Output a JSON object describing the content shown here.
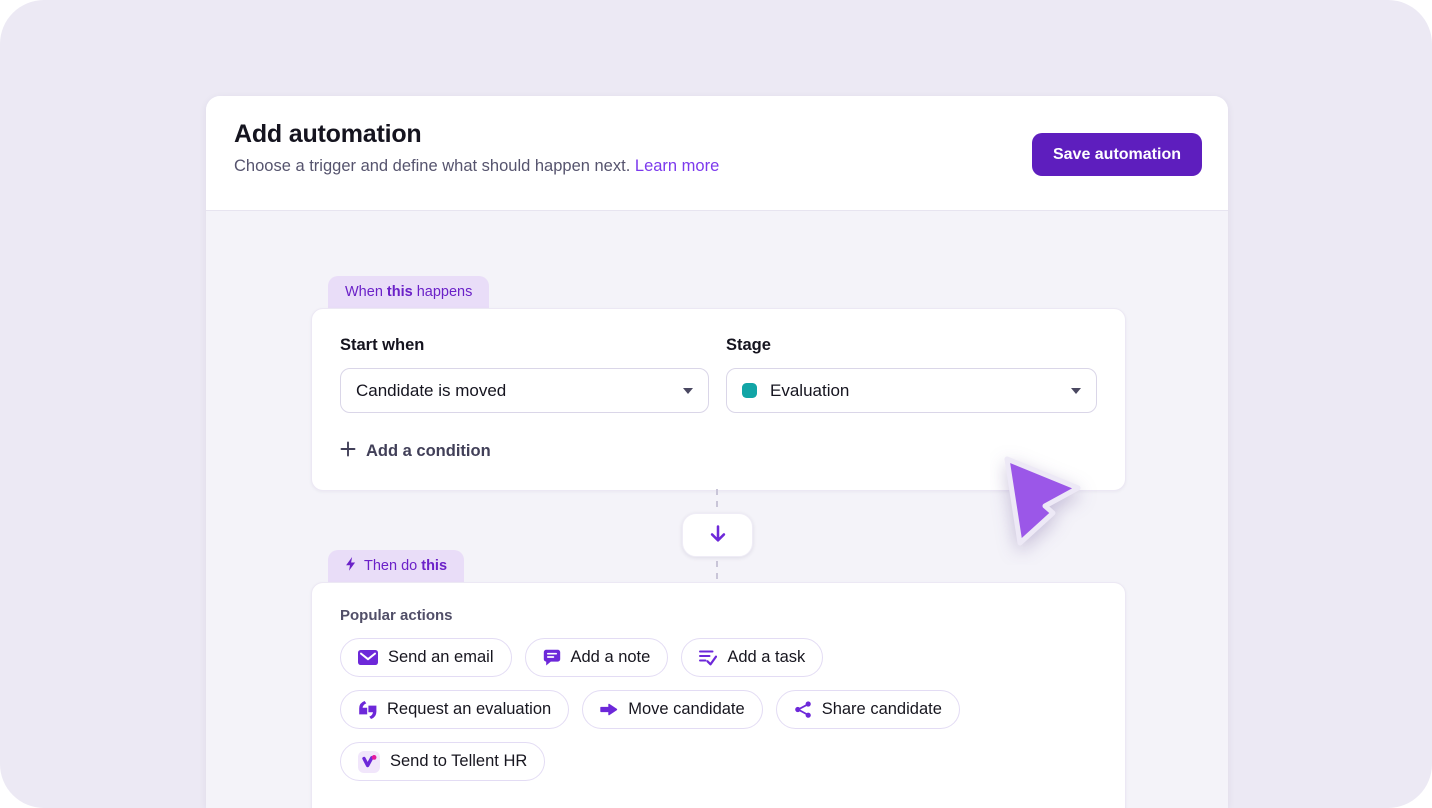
{
  "header": {
    "title": "Add automation",
    "subtitle": "Choose a trigger and define what should happen next.",
    "learn_more_label": "Learn more",
    "save_label": "Save automation"
  },
  "trigger": {
    "badge_pre": "When ",
    "badge_bold": "this",
    "badge_post": " happens",
    "start_when_label": "Start when",
    "start_when_value": "Candidate is moved",
    "stage_label": "Stage",
    "stage_value": "Evaluation",
    "stage_swatch_color": "#12A5A6",
    "add_condition_label": "Add a condition"
  },
  "connector": {
    "icon": "arrow-down-icon"
  },
  "action": {
    "badge_icon": "lightning-icon",
    "badge_pre": "Then do ",
    "badge_bold": "this",
    "badge_post": "",
    "popular_actions_label": "Popular actions",
    "rows": [
      [
        {
          "label": "Send an email",
          "icon": "email-icon"
        },
        {
          "label": "Add a note",
          "icon": "note-icon"
        },
        {
          "label": "Add a task",
          "icon": "task-icon"
        }
      ],
      [
        {
          "label": "Request an evaluation",
          "icon": "quote-icon"
        },
        {
          "label": "Move candidate",
          "icon": "arrow-right-icon"
        },
        {
          "label": "Share candidate",
          "icon": "share-icon"
        }
      ],
      [
        {
          "label": "Send to Tellent HR",
          "icon": "tellent-logo-icon"
        }
      ]
    ]
  },
  "colors": {
    "accent_purple": "#6D28D9",
    "deep_purple": "#5E1EBE",
    "badge_bg": "#E9DDF8",
    "badge_text": "#6B21C8",
    "teal": "#12A5A6",
    "page_bg": "#ECE9F4",
    "body_bg": "#F4F3F9",
    "cursor_fill": "#9B57E8",
    "link_purple": "#7C3AED",
    "magenta_dot": "#E3199E"
  }
}
